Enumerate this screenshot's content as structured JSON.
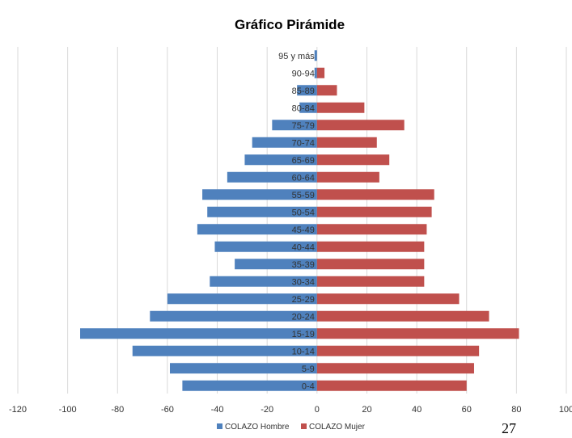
{
  "page_number": "27",
  "chart_data": {
    "type": "bar",
    "orientation": "horizontal",
    "title": "Gráfico Pirámide",
    "xlabel": "",
    "ylabel": "",
    "xlim": [
      -120,
      100
    ],
    "x_ticks": [
      "-120",
      "-100",
      "-80",
      "-60",
      "-40",
      "-20",
      "0",
      "20",
      "40",
      "60",
      "80",
      "100"
    ],
    "grid": "vertical",
    "legend_position": "bottom",
    "categories": [
      "95 y más",
      "90-94",
      "85-89",
      "80-84",
      "75-79",
      "70-74",
      "65-69",
      "60-64",
      "55-59",
      "50-54",
      "45-49",
      "40-44",
      "35-39",
      "30-34",
      "25-29",
      "20-24",
      "15-19",
      "10-14",
      "5-9",
      "0-4"
    ],
    "series": [
      {
        "name": "COLAZO Hombre",
        "color": "#4f81bd",
        "values": [
          -1,
          -1,
          -8,
          -7,
          -18,
          -26,
          -29,
          -36,
          -46,
          -44,
          -48,
          -41,
          -33,
          -43,
          -60,
          -67,
          -95,
          -74,
          -59,
          -54
        ]
      },
      {
        "name": "COLAZO Mujer",
        "color": "#c0504d",
        "values": [
          0,
          3,
          8,
          19,
          35,
          24,
          29,
          25,
          47,
          46,
          44,
          43,
          43,
          43,
          57,
          69,
          81,
          65,
          63,
          60
        ]
      }
    ]
  }
}
